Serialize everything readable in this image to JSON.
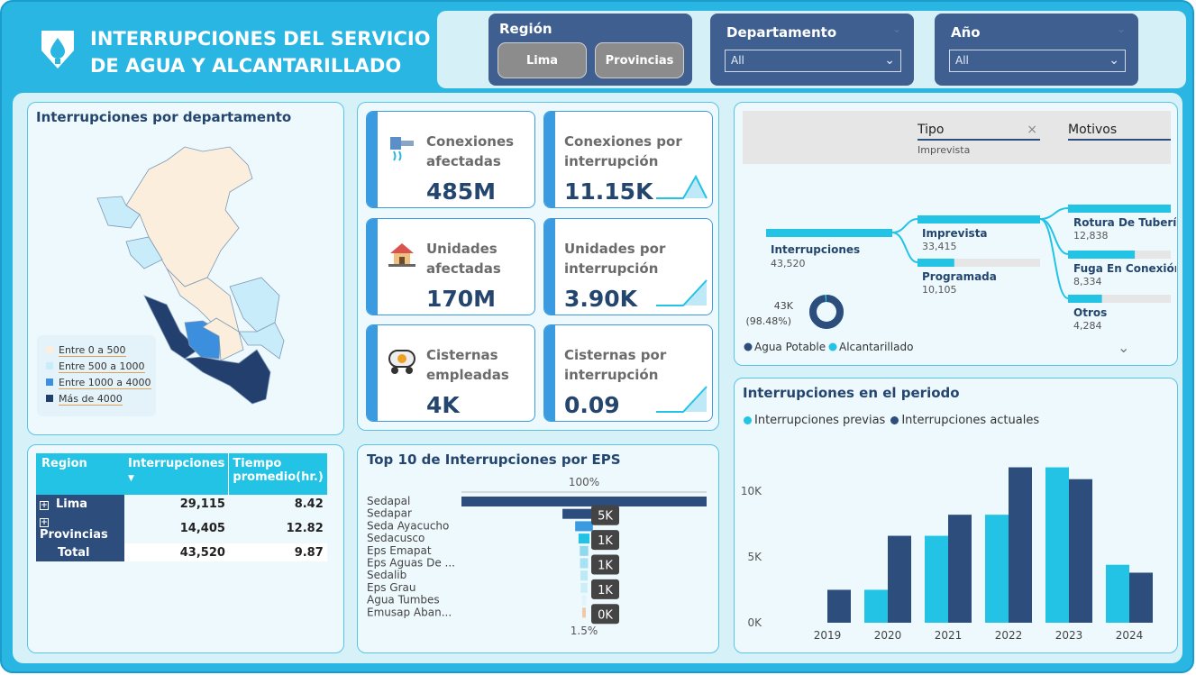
{
  "header": {
    "title_line1": "INTERRUPCIONES DEL SERVICIO",
    "title_line2": "DE AGUA Y ALCANTARILLADO",
    "logo_icon": "water-drop-shield-icon"
  },
  "slicers": {
    "region": {
      "label": "Región",
      "options": [
        "Lima",
        "Provincias"
      ]
    },
    "departamento": {
      "label": "Departamento",
      "selected": "All"
    },
    "anio": {
      "label": "Año",
      "selected": "All"
    }
  },
  "map_card": {
    "title": "Interrupciones por departamento",
    "legend": [
      {
        "label": "Entre 0 a 500",
        "color": "#fbeedd"
      },
      {
        "label": "Entre 500 a 1000",
        "color": "#c9ecfa"
      },
      {
        "label": "Entre 1000 a 4000",
        "color": "#3c8fdc"
      },
      {
        "label": "Más de 4000",
        "color": "#233f6e"
      }
    ]
  },
  "kpis": [
    {
      "label_l1": "Conexiones",
      "label_l2": "afectadas",
      "value": "485M",
      "icon": "pipe-connection-icon"
    },
    {
      "label_l1": "Conexiones por",
      "label_l2": "interrupción",
      "value": "11.15K",
      "spark": "peak"
    },
    {
      "label_l1": "Unidades",
      "label_l2": "afectadas",
      "value": "170M",
      "icon": "house-icon"
    },
    {
      "label_l1": "Unidades por",
      "label_l2": "interrupción",
      "value": "3.90K",
      "spark": "rise"
    },
    {
      "label_l1": "Cisternas",
      "label_l2": "empleadas",
      "value": "4K",
      "icon": "water-tanker-icon"
    },
    {
      "label_l1": "Cisternas por",
      "label_l2": "interrupción",
      "value": "0.09",
      "spark": "rise"
    }
  ],
  "decomp": {
    "tab_tipo": "Tipo",
    "tab_tipo_value": "Imprevista",
    "tab_motivos": "Motivos",
    "root": {
      "label": "Interrupciones",
      "value": "43,520"
    },
    "tipos": [
      {
        "label": "Imprevista",
        "value": "33,415",
        "fraction": 1.0
      },
      {
        "label": "Programada",
        "value": "10,105",
        "fraction": 0.3
      }
    ],
    "motivos": [
      {
        "label": "Rotura De Tubería",
        "value": "12,838",
        "fraction": 1.0
      },
      {
        "label": "Fuga En Conexión",
        "value": "8,334",
        "fraction": 0.65
      },
      {
        "label": "Otros",
        "value": "4,284",
        "fraction": 0.33
      }
    ],
    "donut": {
      "value_label": "43K",
      "pct_label": "(98.48%)",
      "legend": [
        {
          "label": "Agua Potable",
          "color": "#2d4d7c"
        },
        {
          "label": "Alcantarillado",
          "color": "#23c3e6"
        }
      ],
      "fraction_primary": 0.9848
    }
  },
  "region_table": {
    "headers": [
      "Region",
      "Interrupciones",
      "Tiempo promedio(hr.)"
    ],
    "header_tiempo_l1": "Tiempo",
    "header_tiempo_l2": "promedio(hr.)",
    "rows": [
      {
        "region": "Lima",
        "interrupciones": "29,115",
        "tiempo": "8.42"
      },
      {
        "region": "Provincias",
        "interrupciones": "14,405",
        "tiempo": "12.82"
      }
    ],
    "total": {
      "region": "Total",
      "interrupciones": "43,520",
      "tiempo": "9.87"
    }
  },
  "funnel": {
    "title": "Top 10 de Interrupciones por EPS",
    "top_label": "100%",
    "bottom_label": "1.5%",
    "items": [
      {
        "name": "Sedapal",
        "value": 29000
      },
      {
        "name": "Sedapar",
        "value": 5100
      },
      {
        "name": "Seda Ayacucho",
        "value": 2100
      },
      {
        "name": "Sedacusco",
        "value": 1300
      },
      {
        "name": "Eps Emapat",
        "value": 1000
      },
      {
        "name": "Eps Aguas De ...",
        "value": 950
      },
      {
        "name": "Sedalib",
        "value": 850
      },
      {
        "name": "Eps Grau",
        "value": 800
      },
      {
        "name": "Agua Tumbes",
        "value": 500
      },
      {
        "name": "Emusap Aban...",
        "value": 430
      }
    ],
    "data_labels": [
      "5K",
      "1K",
      "1K",
      "1K",
      "0K"
    ]
  },
  "chart_data": {
    "type": "bar",
    "title": "Interrupciones en el periodo",
    "categories": [
      "2019",
      "2020",
      "2021",
      "2022",
      "2023",
      "2024"
    ],
    "series": [
      {
        "name": "Interrupciones previas",
        "color": "#23c3e6",
        "values": [
          0,
          2500,
          6600,
          8200,
          11800,
          4400
        ]
      },
      {
        "name": "Interrupciones actuales",
        "color": "#2d4d7c",
        "values": [
          2500,
          6600,
          8200,
          11800,
          10900,
          3800
        ]
      }
    ],
    "yticks": [
      "0K",
      "5K",
      "10K"
    ],
    "ylim": [
      0,
      13000
    ],
    "legend": "top-left"
  }
}
